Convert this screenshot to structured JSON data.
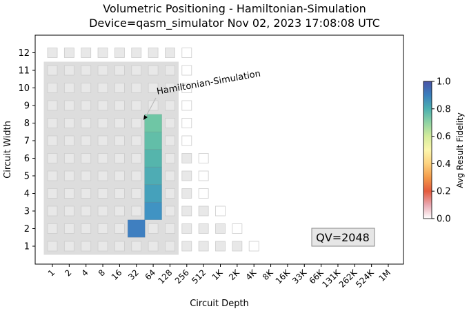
{
  "chart_data": {
    "type": "heatmap",
    "title_line1": "Volumetric Positioning - Hamiltonian-Simulation",
    "title_line2": "Device=qasm_simulator  Nov 02, 2023 17:08:08 UTC",
    "xlabel": "Circuit Depth",
    "ylabel": "Circuit Width",
    "x_ticks": [
      "1",
      "2",
      "4",
      "8",
      "16",
      "32",
      "64",
      "128",
      "256",
      "512",
      "1K",
      "2K",
      "4K",
      "8K",
      "16K",
      "33K",
      "66K",
      "131K",
      "262K",
      "524K",
      "1M"
    ],
    "y_ticks": [
      "1",
      "2",
      "3",
      "4",
      "5",
      "6",
      "7",
      "8",
      "9",
      "10",
      "11",
      "12"
    ],
    "qv_label": "QV=2048",
    "annotation": "Hamiltonian-Simulation",
    "colorbar": {
      "label": "Avg Result Fidelity",
      "ticks": [
        "0.0",
        "0.2",
        "0.4",
        "0.6",
        "0.8",
        "1.0"
      ],
      "range": [
        0,
        1
      ]
    },
    "qv_region": {
      "max_depth_index": 7,
      "max_width": 11
    },
    "reference_boxes": [
      {
        "width": 1,
        "max_depth_index": 12
      },
      {
        "width": 2,
        "max_depth_index": 11
      },
      {
        "width": 3,
        "max_depth_index": 10
      },
      {
        "width": 4,
        "max_depth_index": 9
      },
      {
        "width": 5,
        "max_depth_index": 9
      },
      {
        "width": 6,
        "max_depth_index": 9
      },
      {
        "width": 7,
        "max_depth_index": 8
      },
      {
        "width": 8,
        "max_depth_index": 8
      },
      {
        "width": 9,
        "max_depth_index": 8
      },
      {
        "width": 10,
        "max_depth_index": 8
      },
      {
        "width": 11,
        "max_depth_index": 8
      },
      {
        "width": 12,
        "max_depth_index": 8
      }
    ],
    "data_points": [
      {
        "width": 2,
        "depth": "32",
        "fidelity": 0.9,
        "color": "#3f7fc0"
      },
      {
        "width": 3,
        "depth": "64",
        "fidelity": 0.88,
        "color": "#4093c3"
      },
      {
        "width": 4,
        "depth": "64",
        "fidelity": 0.85,
        "color": "#45a1bb"
      },
      {
        "width": 5,
        "depth": "64",
        "fidelity": 0.82,
        "color": "#4eacb4"
      },
      {
        "width": 6,
        "depth": "64",
        "fidelity": 0.78,
        "color": "#55b5ac"
      },
      {
        "width": 7,
        "depth": "64",
        "fidelity": 0.74,
        "color": "#62bea8"
      },
      {
        "width": 8,
        "depth": "64",
        "fidelity": 0.7,
        "color": "#6fc6a5"
      }
    ]
  }
}
